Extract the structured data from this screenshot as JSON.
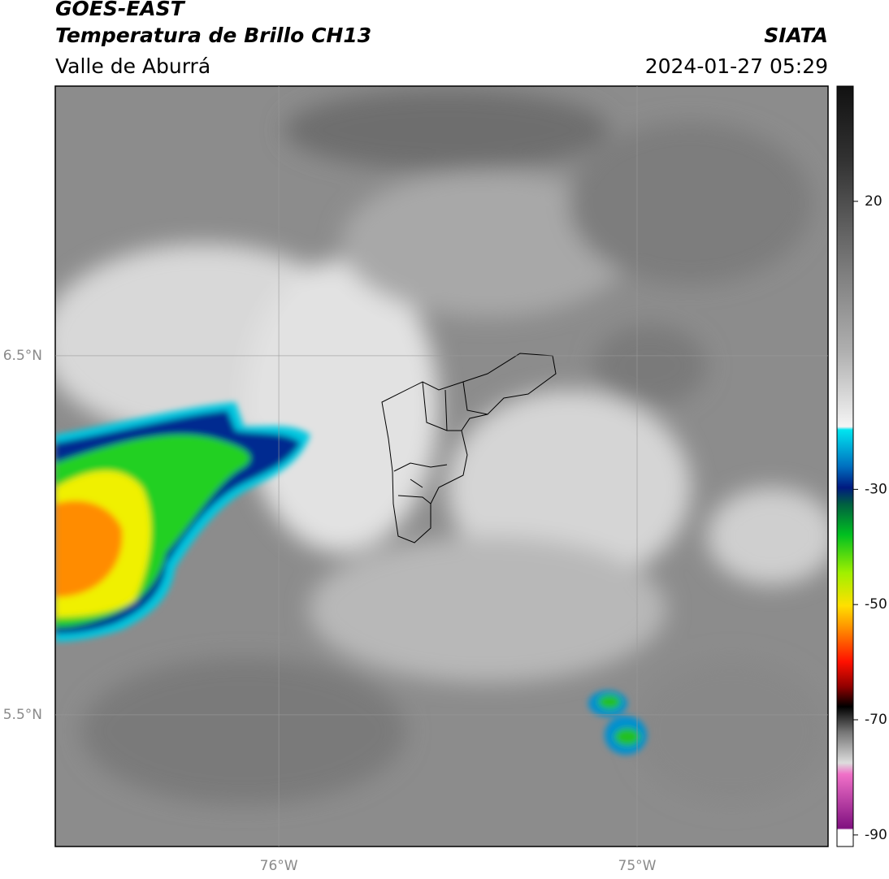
{
  "header": {
    "title": "GOES-EAST",
    "subtitle": "Temperatura de Brillo CH13",
    "region": "Valle de Aburrá",
    "source": "SIATA",
    "timestamp": "2024-01-27 05:29"
  },
  "map": {
    "xlim": [
      -76.624,
      -74.467
    ],
    "ylim": [
      5.133,
      7.251
    ],
    "xticks": [
      {
        "value": -76,
        "label": "76°W"
      },
      {
        "value": -75,
        "label": "75°W"
      }
    ],
    "yticks": [
      {
        "value": 5.5,
        "label": "5.5°N"
      },
      {
        "value": 6.5,
        "label": "6.5°N"
      }
    ],
    "grid": true
  },
  "colorbar": {
    "clim": [
      -92,
      40
    ],
    "ticks": [
      -90,
      -70,
      -50,
      -30,
      20
    ]
  }
}
